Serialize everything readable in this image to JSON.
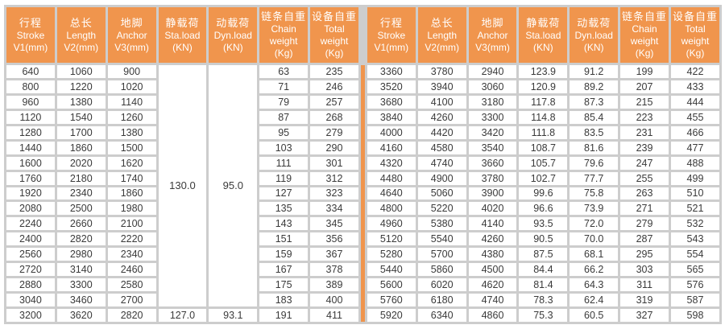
{
  "table": {
    "columns": [
      {
        "key": "stroke",
        "zh": "行程",
        "lines": [
          "Stroke",
          "V1(mm)"
        ]
      },
      {
        "key": "length",
        "zh": "总长",
        "lines": [
          "Length",
          "V2(mm)"
        ]
      },
      {
        "key": "anchor",
        "zh": "地脚",
        "lines": [
          "Anchor",
          "V3(mm)"
        ]
      },
      {
        "key": "sta-load",
        "zh": "静载荷",
        "lines": [
          "Sta.load",
          "(KN)"
        ]
      },
      {
        "key": "dyn-load",
        "zh": "动载荷",
        "lines": [
          "Dyn.load",
          "(KN)"
        ]
      },
      {
        "key": "chain-weight",
        "zh": "链条自重",
        "lines": [
          "Chain",
          "weight",
          "(Kg)"
        ]
      },
      {
        "key": "total-weight",
        "zh": "设备自重",
        "lines": [
          "Total",
          "weight",
          "(Kg)"
        ]
      }
    ],
    "left": {
      "merged": {
        "sta_load": "130.0",
        "dyn_load": "95.0",
        "rows_spanned": 16
      },
      "rows": [
        [
          "640",
          "1060",
          "900",
          "63",
          "235"
        ],
        [
          "800",
          "1220",
          "1020",
          "71",
          "246"
        ],
        [
          "960",
          "1380",
          "1140",
          "79",
          "257"
        ],
        [
          "1120",
          "1540",
          "1260",
          "87",
          "268"
        ],
        [
          "1280",
          "1700",
          "1380",
          "95",
          "279"
        ],
        [
          "1440",
          "1860",
          "1500",
          "103",
          "290"
        ],
        [
          "1600",
          "2020",
          "1620",
          "111",
          "301"
        ],
        [
          "1760",
          "2180",
          "1740",
          "119",
          "312"
        ],
        [
          "1920",
          "2340",
          "1860",
          "127",
          "323"
        ],
        [
          "2080",
          "2500",
          "1980",
          "135",
          "334"
        ],
        [
          "2240",
          "2660",
          "2100",
          "143",
          "345"
        ],
        [
          "2400",
          "2820",
          "2220",
          "151",
          "356"
        ],
        [
          "2560",
          "2980",
          "2340",
          "159",
          "367"
        ],
        [
          "2720",
          "3140",
          "2460",
          "167",
          "378"
        ],
        [
          "2880",
          "3300",
          "2580",
          "175",
          "389"
        ],
        [
          "3040",
          "3460",
          "2700",
          "183",
          "400"
        ],
        [
          "3200",
          "3620",
          "2820",
          "127.0",
          "93.1",
          "191",
          "411"
        ]
      ]
    },
    "right": {
      "rows": [
        [
          "3360",
          "3780",
          "2940",
          "123.9",
          "91.2",
          "199",
          "422"
        ],
        [
          "3520",
          "3940",
          "3060",
          "120.9",
          "89.2",
          "207",
          "433"
        ],
        [
          "3680",
          "4100",
          "3180",
          "117.8",
          "87.3",
          "215",
          "444"
        ],
        [
          "3840",
          "4260",
          "3300",
          "114.8",
          "85.4",
          "223",
          "455"
        ],
        [
          "4000",
          "4420",
          "3420",
          "111.8",
          "83.5",
          "231",
          "466"
        ],
        [
          "4160",
          "4580",
          "3540",
          "108.7",
          "81.6",
          "239",
          "477"
        ],
        [
          "4320",
          "4740",
          "3660",
          "105.7",
          "79.6",
          "247",
          "488"
        ],
        [
          "4480",
          "4900",
          "3780",
          "102.7",
          "77.7",
          "255",
          "499"
        ],
        [
          "4640",
          "5060",
          "3900",
          "99.6",
          "75.8",
          "263",
          "510"
        ],
        [
          "4800",
          "5220",
          "4020",
          "96.6",
          "73.9",
          "271",
          "521"
        ],
        [
          "4960",
          "5380",
          "4140",
          "93.5",
          "72.0",
          "279",
          "532"
        ],
        [
          "5120",
          "5540",
          "4260",
          "90.5",
          "70.0",
          "287",
          "543"
        ],
        [
          "5280",
          "5700",
          "4380",
          "87.5",
          "68.1",
          "295",
          "554"
        ],
        [
          "5440",
          "5860",
          "4500",
          "84.4",
          "66.2",
          "303",
          "565"
        ],
        [
          "5600",
          "6020",
          "4620",
          "81.4",
          "64.3",
          "311",
          "576"
        ],
        [
          "5760",
          "6180",
          "4740",
          "78.3",
          "62.4",
          "319",
          "587"
        ],
        [
          "5920",
          "6340",
          "4860",
          "75.3",
          "60.5",
          "327",
          "598"
        ]
      ]
    }
  },
  "colors": {
    "header_orange": "#f0954d",
    "divider_orange": "#f0954d",
    "grid_gray": "#cdcdcd",
    "cell_text": "#3a3a3a"
  }
}
